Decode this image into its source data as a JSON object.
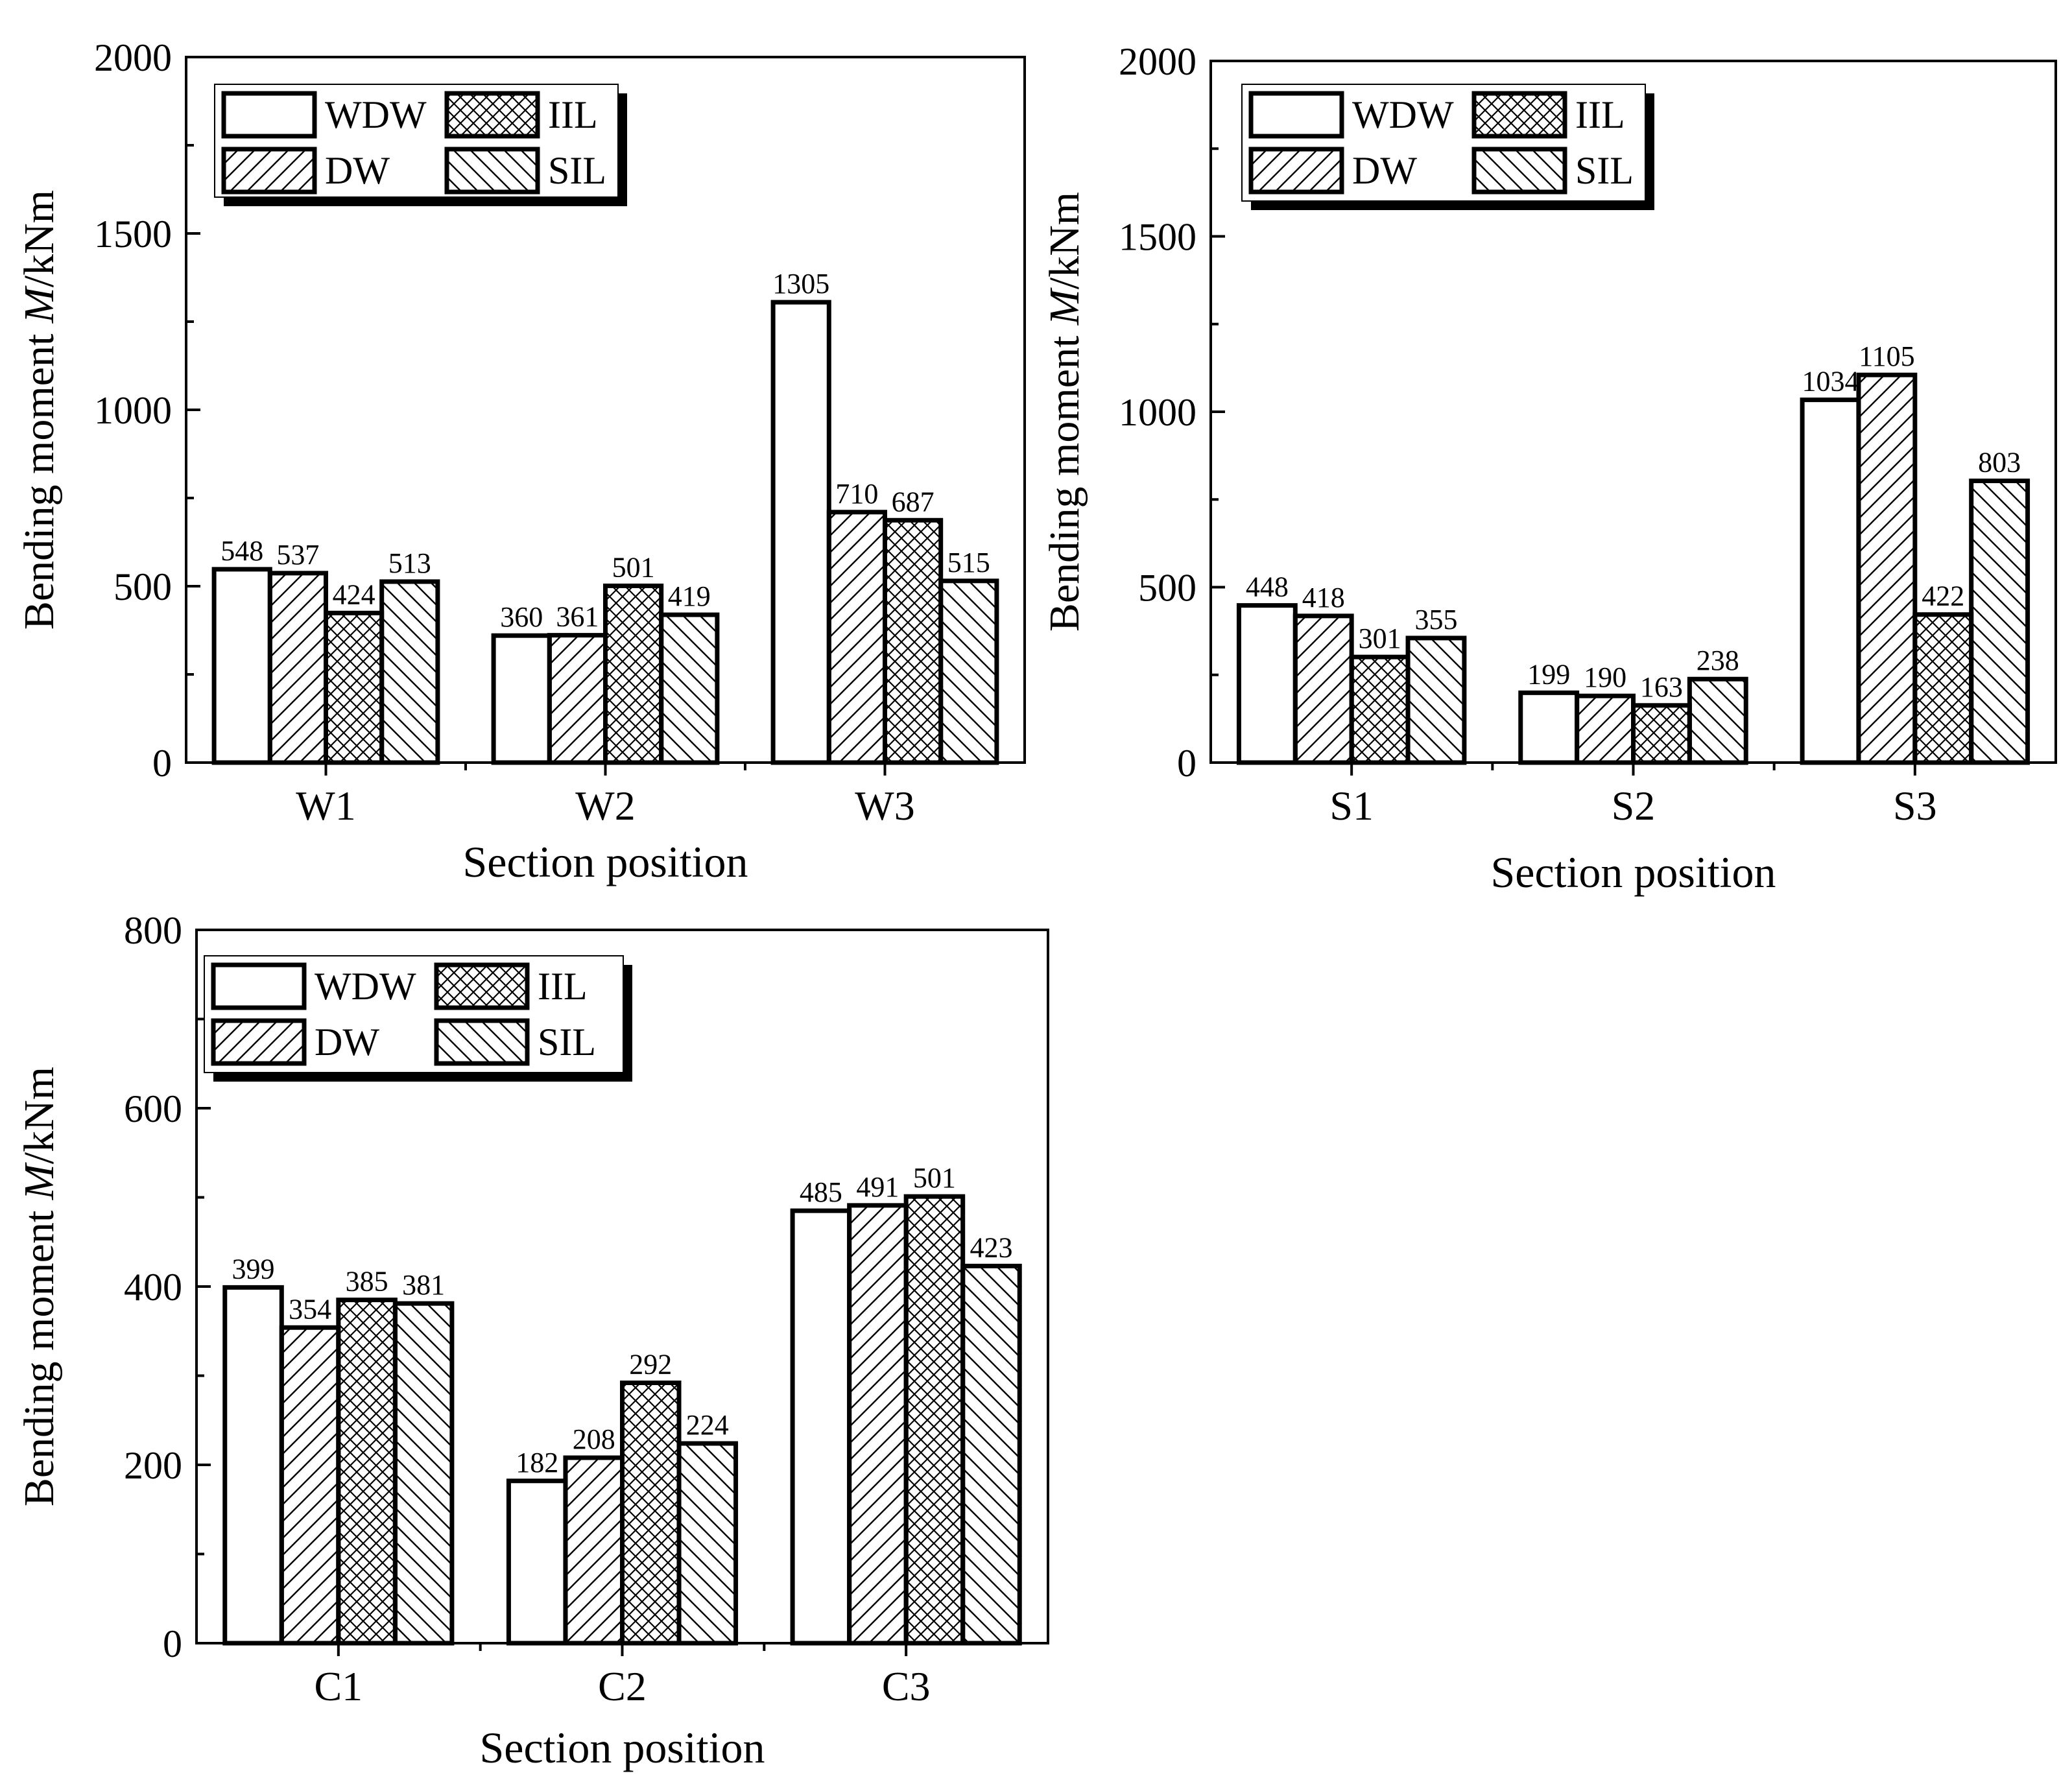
{
  "legend": {
    "WDW": "WDW",
    "DW": "DW",
    "IIL": "IIL",
    "SIL": "SIL"
  },
  "chart_data": [
    {
      "id": "chart-w",
      "type": "bar",
      "title": "",
      "xlabel": "Section position",
      "ylabel_prefix": "Bending moment ",
      "ylabel_italic": "M",
      "ylabel_suffix": "/kNm",
      "ylim": [
        0,
        2000
      ],
      "yticks": [
        0,
        500,
        1000,
        1500,
        2000
      ],
      "categories": [
        "W1",
        "W2",
        "W3"
      ],
      "series": [
        {
          "name": "WDW",
          "values": [
            548,
            360,
            1305
          ]
        },
        {
          "name": "DW",
          "values": [
            537,
            361,
            710
          ]
        },
        {
          "name": "IIL",
          "values": [
            424,
            501,
            687
          ]
        },
        {
          "name": "SIL",
          "values": [
            513,
            419,
            515
          ]
        }
      ],
      "legend_position": "top-left"
    },
    {
      "id": "chart-s",
      "type": "bar",
      "title": "",
      "xlabel": "Section position",
      "ylabel_prefix": "Bending moment ",
      "ylabel_italic": "M",
      "ylabel_suffix": "/kNm",
      "ylim": [
        0,
        2000
      ],
      "yticks": [
        0,
        500,
        1000,
        1500,
        2000
      ],
      "categories": [
        "S1",
        "S2",
        "S3"
      ],
      "series": [
        {
          "name": "WDW",
          "values": [
            448,
            199,
            1034
          ]
        },
        {
          "name": "DW",
          "values": [
            418,
            190,
            1105
          ]
        },
        {
          "name": "IIL",
          "values": [
            301,
            163,
            422
          ]
        },
        {
          "name": "SIL",
          "values": [
            355,
            238,
            803
          ]
        }
      ],
      "legend_position": "top-left"
    },
    {
      "id": "chart-c",
      "type": "bar",
      "title": "",
      "xlabel": "Section position",
      "ylabel_prefix": "Bending moment ",
      "ylabel_italic": "M",
      "ylabel_suffix": "/kNm",
      "ylim": [
        0,
        800
      ],
      "yticks": [
        0,
        200,
        400,
        600,
        800
      ],
      "categories": [
        "C1",
        "C2",
        "C3"
      ],
      "series": [
        {
          "name": "WDW",
          "values": [
            399,
            182,
            485
          ]
        },
        {
          "name": "DW",
          "values": [
            354,
            208,
            491
          ]
        },
        {
          "name": "IIL",
          "values": [
            385,
            292,
            501
          ]
        },
        {
          "name": "SIL",
          "values": [
            381,
            224,
            423
          ]
        }
      ],
      "legend_position": "top-left"
    }
  ]
}
